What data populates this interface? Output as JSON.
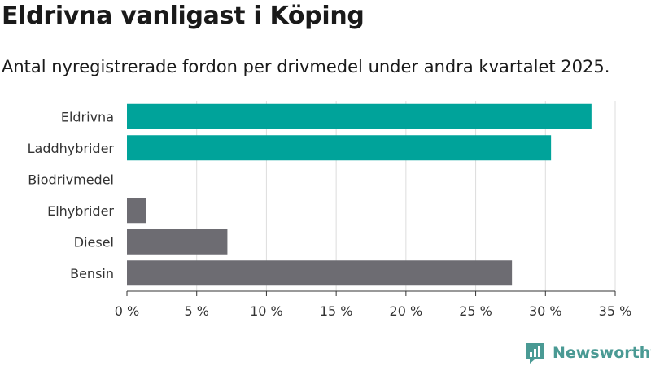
{
  "title": "Eldrivna vanligast i Köping",
  "subtitle": "Antal nyregistrerade fordon per drivmedel under andra kvartalet 2025.",
  "brand": {
    "name": "Newsworthy",
    "color": "#4a9a94",
    "icon": "newsworthy-logo-icon"
  },
  "colors": {
    "highlight": "#00a39a",
    "default": "#6d6c72",
    "grid": "#dddddd"
  },
  "chart_data": {
    "type": "bar",
    "orientation": "horizontal",
    "categories": [
      "Eldrivna",
      "Laddhybrider",
      "Biodrivmedel",
      "Elhybrider",
      "Diesel",
      "Bensin"
    ],
    "values": [
      33.3,
      30.4,
      0,
      1.4,
      7.2,
      27.6
    ],
    "highlight": [
      true,
      true,
      false,
      false,
      false,
      false
    ],
    "xlim": [
      0,
      35
    ],
    "xticks": [
      0,
      5,
      10,
      15,
      20,
      25,
      30,
      35
    ],
    "xtick_labels": [
      "0 %",
      "5 %",
      "10 %",
      "15 %",
      "20 %",
      "25 %",
      "30 %",
      "35 %"
    ],
    "grid": true
  }
}
